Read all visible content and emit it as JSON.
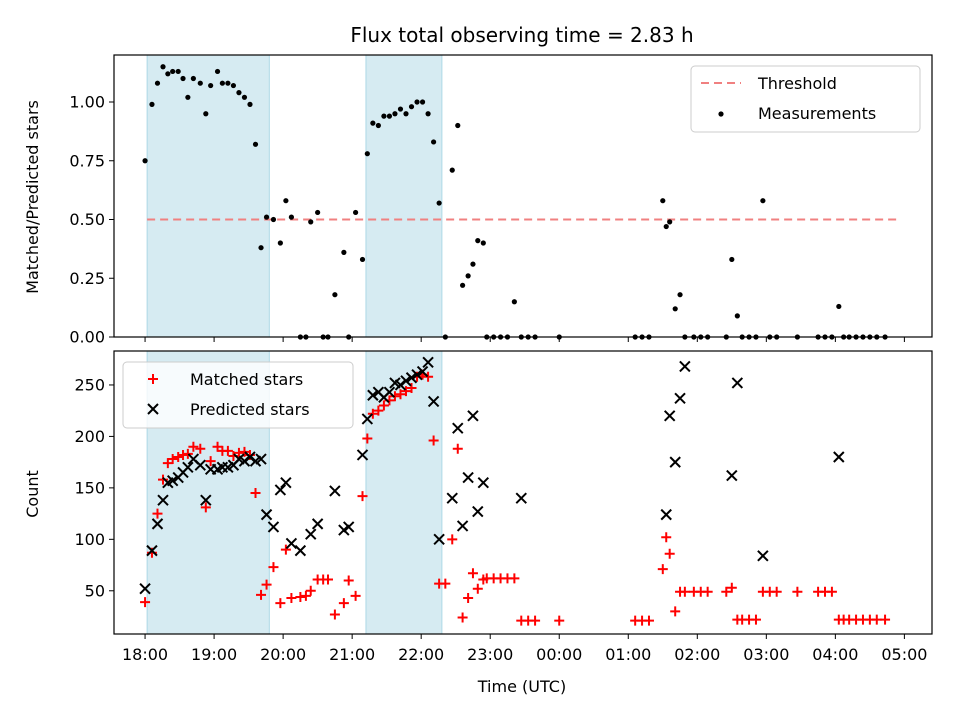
{
  "chart_data": [
    {
      "type": "scatter",
      "title": "Flux total observing time = 2.83 h",
      "ylabel": "Matched/Predicted stars",
      "xlabel": "",
      "xlim": [
        17.55,
        29.4
      ],
      "ylim": [
        0,
        1.2
      ],
      "yticks": [
        0,
        0.25,
        0.5,
        0.75,
        1.0
      ],
      "ytick_labels": [
        "0.00",
        "0.25",
        "0.50",
        "0.75",
        "1.00"
      ],
      "grid": false,
      "legend_position": "top-right",
      "shaded_intervals": [
        [
          18.03,
          19.8
        ],
        [
          21.2,
          22.3
        ]
      ],
      "series": [
        {
          "name": "Threshold",
          "kind": "dashed-line",
          "color": "#f08080",
          "x": [
            18.03,
            28.9
          ],
          "y": [
            0.5,
            0.5
          ]
        },
        {
          "name": "Measurements",
          "kind": "dots",
          "color": "#000000",
          "x": [
            18.0,
            18.1,
            18.18,
            18.26,
            18.33,
            18.4,
            18.48,
            18.55,
            18.62,
            18.7,
            18.8,
            18.88,
            18.95,
            19.05,
            19.12,
            19.2,
            19.28,
            19.36,
            19.44,
            19.52,
            19.6,
            19.68,
            19.76,
            19.86,
            19.96,
            20.04,
            20.12,
            20.25,
            20.33,
            20.4,
            20.5,
            20.58,
            20.65,
            20.75,
            20.88,
            20.95,
            21.05,
            21.15,
            21.22,
            21.3,
            21.38,
            21.46,
            21.54,
            21.62,
            21.7,
            21.78,
            21.86,
            21.94,
            22.02,
            22.1,
            22.18,
            22.26,
            22.35,
            22.45,
            22.53,
            22.6,
            22.68,
            22.75,
            22.82,
            22.9,
            22.95,
            23.05,
            23.15,
            23.25,
            23.35,
            23.45,
            23.55,
            23.65,
            24.0,
            25.1,
            25.2,
            25.3,
            25.5,
            25.55,
            25.6,
            25.68,
            25.75,
            25.82,
            25.95,
            26.05,
            26.15,
            26.42,
            26.5,
            26.58,
            26.65,
            26.75,
            26.85,
            26.95,
            27.05,
            27.15,
            27.45,
            27.75,
            27.85,
            27.95,
            28.05,
            28.12,
            28.2,
            28.3,
            28.4,
            28.5,
            28.6,
            28.72
          ],
          "y": [
            0.75,
            0.99,
            1.08,
            1.15,
            1.12,
            1.13,
            1.13,
            1.1,
            1.02,
            1.1,
            1.08,
            0.95,
            1.07,
            1.13,
            1.08,
            1.08,
            1.07,
            1.04,
            1.02,
            0.99,
            0.82,
            0.38,
            0.51,
            0.5,
            0.4,
            0.58,
            0.51,
            0.0,
            0.0,
            0.49,
            0.53,
            0.0,
            0.0,
            0.18,
            0.36,
            0.0,
            0.53,
            0.33,
            0.78,
            0.91,
            0.9,
            0.94,
            0.94,
            0.95,
            0.97,
            0.95,
            0.98,
            1.0,
            1.0,
            0.95,
            0.83,
            0.57,
            0.0,
            0.71,
            0.9,
            0.22,
            0.26,
            0.31,
            0.41,
            0.4,
            0.0,
            0.0,
            0.0,
            0.0,
            0.15,
            0.0,
            0.0,
            0.0,
            0.0,
            0.0,
            0.0,
            0.0,
            0.58,
            0.47,
            0.49,
            0.12,
            0.18,
            0.0,
            0.0,
            0.0,
            0.0,
            0.0,
            0.33,
            0.09,
            0.0,
            0.0,
            0.0,
            0.58,
            0.0,
            0.0,
            0.0,
            0.0,
            0.0,
            0.0,
            0.13,
            0.0,
            0.0,
            0.0,
            0.0,
            0.0,
            0.0,
            0.0
          ]
        }
      ]
    },
    {
      "type": "scatter",
      "title": "",
      "ylabel": "Count",
      "xlabel": "Time (UTC)",
      "xlim": [
        17.55,
        29.4
      ],
      "ylim": [
        8,
        283
      ],
      "yticks": [
        50,
        100,
        150,
        200,
        250
      ],
      "ytick_labels": [
        "50",
        "100",
        "150",
        "200",
        "250"
      ],
      "xticks": [
        18,
        19,
        20,
        21,
        22,
        23,
        24,
        25,
        26,
        27,
        28,
        29
      ],
      "xtick_labels": [
        "18:00",
        "19:00",
        "20:00",
        "21:00",
        "22:00",
        "23:00",
        "00:00",
        "01:00",
        "02:00",
        "03:00",
        "04:00",
        "05:00"
      ],
      "grid": false,
      "legend_position": "top-left",
      "shaded_intervals": [
        [
          18.03,
          19.8
        ],
        [
          21.2,
          22.3
        ]
      ],
      "series": [
        {
          "name": "Matched stars",
          "marker": "plus",
          "color": "#ff0000",
          "x": [
            18.0,
            18.1,
            18.18,
            18.26,
            18.33,
            18.4,
            18.48,
            18.55,
            18.62,
            18.7,
            18.8,
            18.88,
            18.95,
            19.05,
            19.12,
            19.2,
            19.28,
            19.36,
            19.44,
            19.52,
            19.6,
            19.68,
            19.76,
            19.86,
            19.96,
            20.04,
            20.12,
            20.25,
            20.33,
            20.4,
            20.5,
            20.58,
            20.65,
            20.75,
            20.88,
            20.95,
            21.05,
            21.15,
            21.22,
            21.3,
            21.38,
            21.46,
            21.54,
            21.62,
            21.7,
            21.78,
            21.86,
            21.94,
            22.02,
            22.1,
            22.18,
            22.26,
            22.35,
            22.45,
            22.53,
            22.6,
            22.68,
            22.75,
            22.82,
            22.9,
            22.95,
            23.05,
            23.15,
            23.25,
            23.35,
            23.45,
            23.55,
            23.65,
            24.0,
            25.1,
            25.2,
            25.3,
            25.5,
            25.55,
            25.6,
            25.68,
            25.75,
            25.82,
            25.95,
            26.05,
            26.15,
            26.42,
            26.5,
            26.58,
            26.65,
            26.75,
            26.85,
            26.95,
            27.05,
            27.15,
            27.45,
            27.75,
            27.85,
            27.95,
            28.05,
            28.12,
            28.2,
            28.3,
            28.4,
            28.5,
            28.6,
            28.72
          ],
          "y": [
            39,
            87,
            125,
            158,
            174,
            178,
            180,
            182,
            183,
            190,
            188,
            131,
            176,
            190,
            186,
            186,
            181,
            184,
            185,
            182,
            145,
            46,
            56,
            73,
            38,
            90,
            43,
            44,
            45,
            50,
            61,
            61,
            61,
            27,
            38,
            60,
            45,
            142,
            198,
            222,
            225,
            230,
            235,
            239,
            241,
            244,
            247,
            258,
            260,
            258,
            196,
            57,
            57,
            100,
            188,
            24,
            43,
            67,
            52,
            61,
            62,
            62,
            62,
            62,
            62,
            21,
            21,
            21,
            21,
            21,
            21,
            21,
            71,
            102,
            86,
            30,
            49,
            49,
            49,
            49,
            49,
            49,
            53,
            22,
            22,
            22,
            22,
            49,
            49,
            49,
            49,
            49,
            49,
            49,
            22,
            22,
            22,
            22,
            22,
            22,
            22,
            22
          ]
        },
        {
          "name": "Predicted stars",
          "marker": "x",
          "color": "#000000",
          "x": [
            18.0,
            18.1,
            18.18,
            18.26,
            18.33,
            18.4,
            18.48,
            18.55,
            18.62,
            18.7,
            18.8,
            18.88,
            18.95,
            19.05,
            19.12,
            19.2,
            19.28,
            19.36,
            19.44,
            19.52,
            19.6,
            19.68,
            19.76,
            19.86,
            19.96,
            20.04,
            20.12,
            20.25,
            20.4,
            20.5,
            20.75,
            20.88,
            20.95,
            21.15,
            21.22,
            21.3,
            21.38,
            21.46,
            21.54,
            21.62,
            21.7,
            21.78,
            21.86,
            21.94,
            22.02,
            22.1,
            22.18,
            22.26,
            22.45,
            22.53,
            22.6,
            22.68,
            22.75,
            22.82,
            22.9,
            23.45,
            25.55,
            25.6,
            25.68,
            25.75,
            25.82,
            26.5,
            26.58,
            26.95,
            28.05
          ],
          "y": [
            52,
            89,
            115,
            138,
            155,
            157,
            160,
            165,
            170,
            178,
            172,
            138,
            168,
            168,
            170,
            170,
            172,
            178,
            176,
            180,
            176,
            178,
            124,
            112,
            148,
            155,
            96,
            89,
            105,
            115,
            147,
            109,
            112,
            182,
            217,
            240,
            243,
            238,
            243,
            252,
            250,
            254,
            257,
            260,
            263,
            272,
            234,
            100,
            140,
            208,
            113,
            160,
            220,
            127,
            155,
            140,
            124,
            220,
            175,
            237,
            268,
            162,
            252,
            84,
            180
          ]
        }
      ]
    }
  ]
}
